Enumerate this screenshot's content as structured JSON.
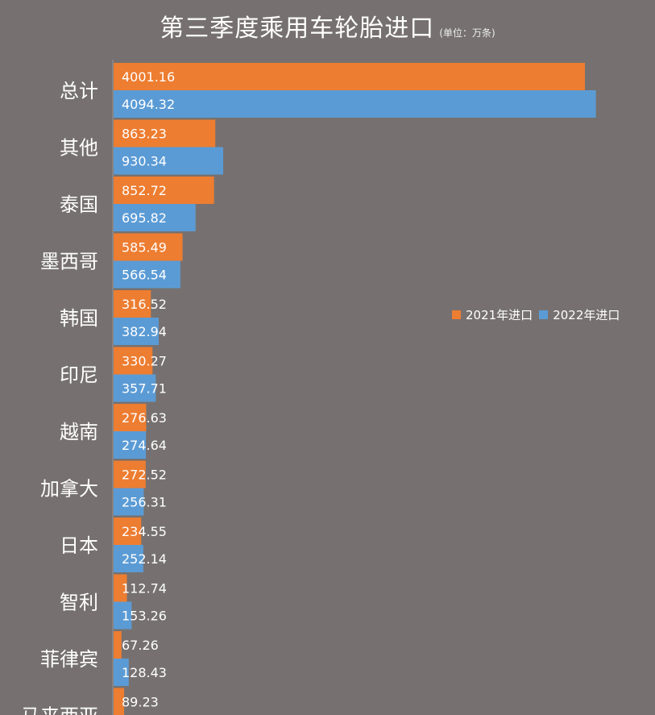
{
  "chart_data": {
    "type": "bar",
    "orientation": "horizontal",
    "title": "第三季度乘用车轮胎进口",
    "unit": "(单位：万条)",
    "categories": [
      "总计",
      "其他",
      "泰国",
      "墨西哥",
      "韩国",
      "印尼",
      "越南",
      "加拿大",
      "日本",
      "智利",
      "菲律宾",
      "马来西亚"
    ],
    "series": [
      {
        "name": "2021年进口",
        "color": "#ed7d31",
        "values": [
          4001.16,
          863.23,
          852.72,
          585.49,
          316.52,
          330.27,
          276.63,
          272.52,
          234.55,
          112.74,
          67.26,
          89.23
        ],
        "labels": [
          "4001.16",
          "863.23",
          "852.72",
          "585.49",
          "316.52",
          "330.27",
          "276.63",
          "272.52",
          "234.55",
          "112.74",
          "67.26",
          "89.23"
        ]
      },
      {
        "name": "2022年进口",
        "color": "#5b9bd5",
        "values": [
          4094.32,
          930.34,
          695.82,
          566.54,
          382.94,
          357.71,
          274.64,
          256.31,
          252.14,
          153.26,
          128.43,
          null
        ],
        "labels": [
          "4094.32",
          "930.34",
          "695.82",
          "566.54",
          "382.94",
          "357.71",
          "274.64",
          "256.31",
          "252.14",
          "153.26",
          "128.43",
          ""
        ]
      }
    ],
    "legend": "right-middle",
    "grid": false
  }
}
